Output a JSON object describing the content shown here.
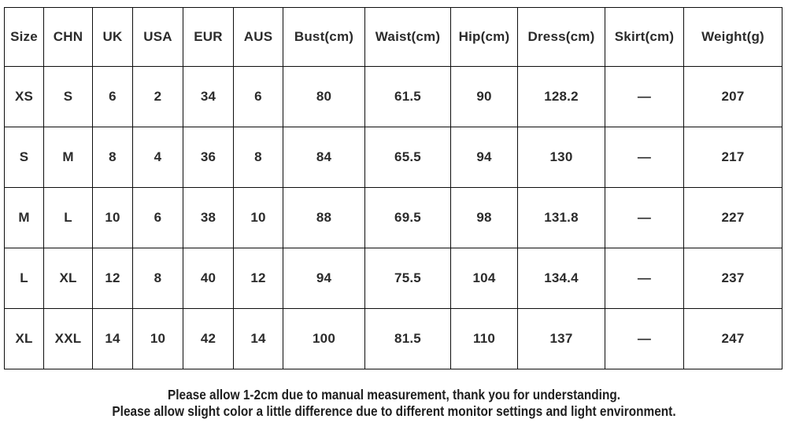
{
  "table": {
    "columns": [
      "Size",
      "CHN",
      "UK",
      "USA",
      "EUR",
      "AUS",
      "Bust(cm)",
      "Waist(cm)",
      "Hip(cm)",
      "Dress(cm)",
      "Skirt(cm)",
      "Weight(g)"
    ],
    "rows": [
      [
        "XS",
        "S",
        "6",
        "2",
        "34",
        "6",
        "80",
        "61.5",
        "90",
        "128.2",
        "—",
        "207"
      ],
      [
        "S",
        "M",
        "8",
        "4",
        "36",
        "8",
        "84",
        "65.5",
        "94",
        "130",
        "—",
        "217"
      ],
      [
        "M",
        "L",
        "10",
        "6",
        "38",
        "10",
        "88",
        "69.5",
        "98",
        "131.8",
        "—",
        "227"
      ],
      [
        "L",
        "XL",
        "12",
        "8",
        "40",
        "12",
        "94",
        "75.5",
        "104",
        "134.4",
        "—",
        "237"
      ],
      [
        "XL",
        "XXL",
        "14",
        "10",
        "42",
        "14",
        "100",
        "81.5",
        "110",
        "137",
        "—",
        "247"
      ]
    ]
  },
  "notes": {
    "line1": "Please allow 1-2cm due to manual measurement, thank you for understanding.",
    "line2": "Please allow slight color a little difference due to different monitor settings and light environment."
  },
  "colors": {
    "background": "#ffffff",
    "border": "#0d0d0d",
    "table_text": "#2b2b2b",
    "note_text": "#1e1e1e"
  }
}
